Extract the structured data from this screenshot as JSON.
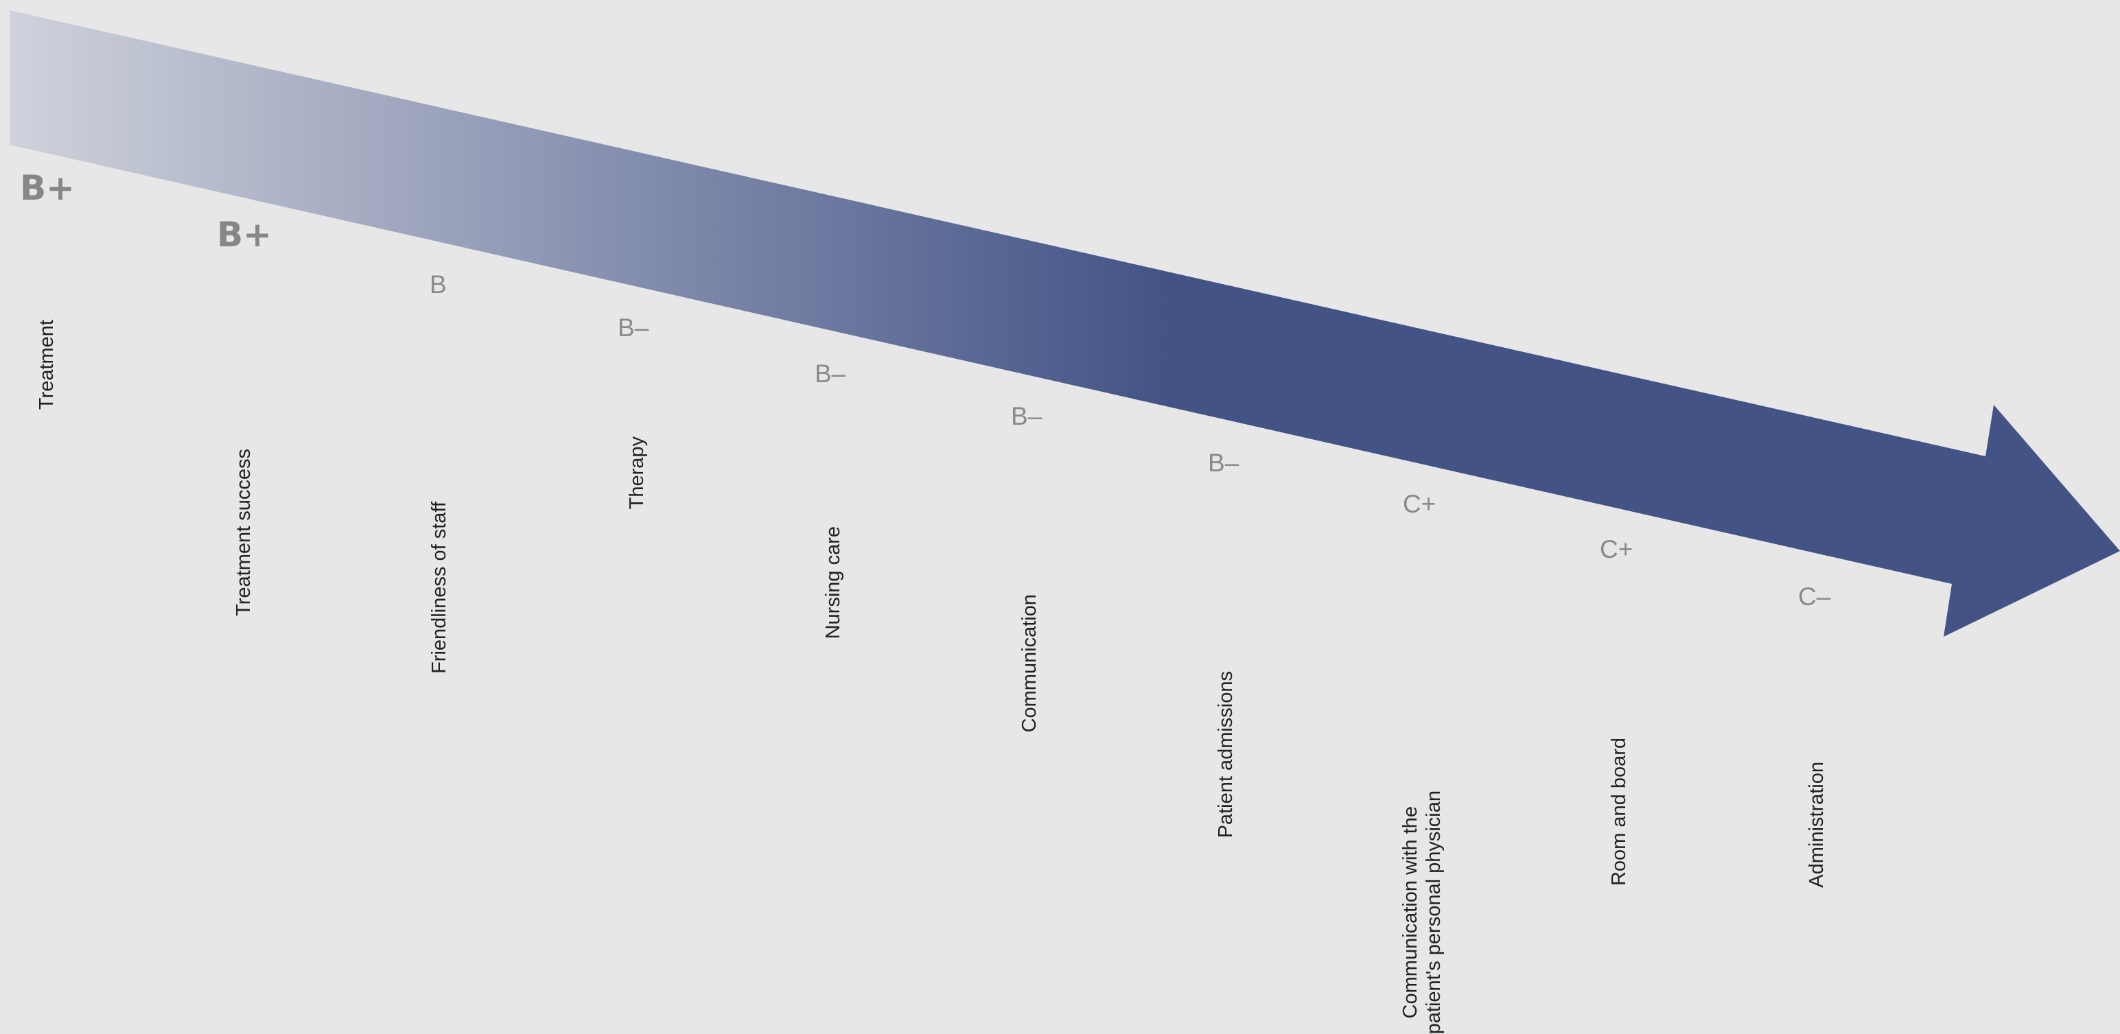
{
  "arrow": {
    "gradient_start_color": "#d0d3dc",
    "gradient_end_color": "#435386"
  },
  "items": [
    {
      "grade": "B+",
      "label": "Treatment",
      "emphasis": true
    },
    {
      "grade": "B+",
      "label": "Treatment success",
      "emphasis": true
    },
    {
      "grade": "B",
      "label": "Friendliness of staff",
      "emphasis": false
    },
    {
      "grade": "B–",
      "label": "Therapy",
      "emphasis": false
    },
    {
      "grade": "B–",
      "label": "Nursing care",
      "emphasis": false
    },
    {
      "grade": "B–",
      "label": "Communication",
      "emphasis": false
    },
    {
      "grade": "B–",
      "label": "Patient admissions",
      "emphasis": false
    },
    {
      "grade": "C+",
      "label": "Communication with the patient's personal physician",
      "label_lines": [
        "Communication with the",
        "patient's personal physician"
      ],
      "emphasis": false
    },
    {
      "grade": "C+",
      "label": "Room and board",
      "emphasis": false
    },
    {
      "grade": "C–",
      "label": "Administration",
      "emphasis": false
    }
  ]
}
